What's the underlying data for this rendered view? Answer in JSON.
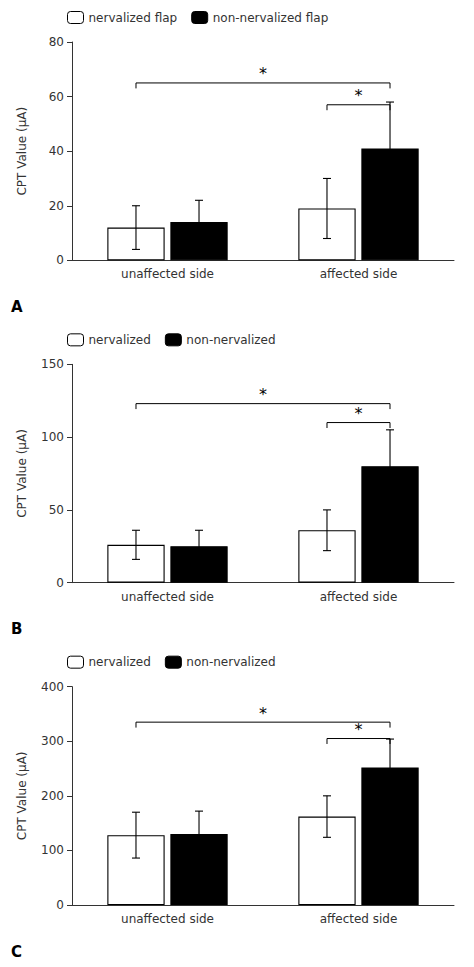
{
  "chart_data": [
    {
      "type": "bar",
      "panel_label": "A",
      "categories": [
        "unaffected side",
        "affected side"
      ],
      "series": [
        {
          "name": "nervalized flap",
          "color": "white",
          "values": [
            12,
            19
          ],
          "errors": [
            8,
            11
          ]
        },
        {
          "name": "non-nervalized flap",
          "color": "black",
          "values": [
            14,
            41
          ],
          "errors": [
            8,
            17
          ]
        }
      ],
      "ylabel": "CPT Value (μA)",
      "ylim": [
        0,
        80
      ],
      "yticks": [
        0,
        20,
        40,
        60,
        80
      ],
      "grid": false,
      "legend": "upper left",
      "significance": [
        {
          "from": {
            "category": "unaffected side",
            "series": "nervalized flap"
          },
          "to": {
            "category": "affected side",
            "series": "non-nervalized flap"
          },
          "y": 65,
          "text": "*"
        },
        {
          "from": {
            "category": "affected side",
            "series": "nervalized flap"
          },
          "to": {
            "category": "affected side",
            "series": "non-nervalized flap"
          },
          "y": 57,
          "text": "*"
        }
      ]
    },
    {
      "type": "bar",
      "panel_label": "B",
      "categories": [
        "unaffected side",
        "affected side"
      ],
      "series": [
        {
          "name": "nervalized",
          "color": "white",
          "values": [
            26,
            36
          ],
          "errors": [
            10,
            14
          ]
        },
        {
          "name": "non-nervalized",
          "color": "black",
          "values": [
            25,
            80
          ],
          "errors": [
            11,
            25
          ]
        }
      ],
      "ylabel": "CPT Value (μA)",
      "ylim": [
        0,
        150
      ],
      "yticks": [
        0,
        50,
        100,
        150
      ],
      "grid": false,
      "legend": "upper left",
      "significance": [
        {
          "from": {
            "category": "unaffected side",
            "series": "nervalized"
          },
          "to": {
            "category": "affected side",
            "series": "non-nervalized"
          },
          "y": 123,
          "text": "*"
        },
        {
          "from": {
            "category": "affected side",
            "series": "nervalized"
          },
          "to": {
            "category": "affected side",
            "series": "non-nervalized"
          },
          "y": 110,
          "text": "*"
        }
      ]
    },
    {
      "type": "bar",
      "panel_label": "C",
      "categories": [
        "unaffected side",
        "affected side"
      ],
      "series": [
        {
          "name": "nervalized",
          "color": "white",
          "values": [
            128,
            162
          ],
          "errors": [
            42,
            38
          ]
        },
        {
          "name": "non-nervalized",
          "color": "black",
          "values": [
            130,
            252
          ],
          "errors": [
            42,
            52
          ]
        }
      ],
      "ylabel": "CPT Value (μA)",
      "ylim": [
        0,
        400
      ],
      "yticks": [
        0,
        100,
        200,
        300,
        400
      ],
      "grid": false,
      "legend": "upper left",
      "significance": [
        {
          "from": {
            "category": "unaffected side",
            "series": "nervalized"
          },
          "to": {
            "category": "affected side",
            "series": "non-nervalized"
          },
          "y": 335,
          "text": "*"
        },
        {
          "from": {
            "category": "affected side",
            "series": "nervalized"
          },
          "to": {
            "category": "affected side",
            "series": "non-nervalized"
          },
          "y": 305,
          "text": "*"
        }
      ]
    }
  ]
}
